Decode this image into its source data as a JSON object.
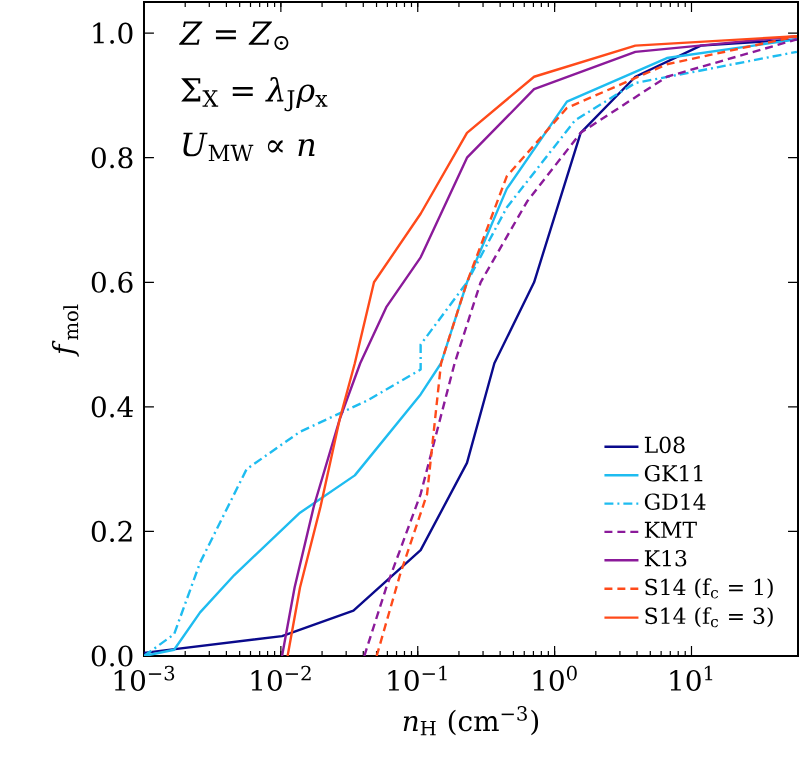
{
  "chart_data": {
    "type": "line",
    "xlabel": "*n*$_{H}$ (cm$^{−3}$)",
    "ylabel": "*f*$_{mol}$",
    "annotations": [
      "*Z* = *Z*$_{⊙}$",
      "Σ$_{X}$ = *λ*$_{J}$*ρ*$_{x}$",
      "*U*$_{MW}$ ∝ *n*"
    ],
    "log": "x",
    "xlim": [
      0.001,
      60
    ],
    "ylim": [
      0,
      1.05
    ],
    "xticks": [
      {
        "value": 0.001,
        "label": "10$^{−3}$"
      },
      {
        "value": 0.01,
        "label": "10$^{−2}$"
      },
      {
        "value": 0.1,
        "label": "10$^{−1}$"
      },
      {
        "value": 1,
        "label": "10$^{0}$"
      },
      {
        "value": 10,
        "label": "10$^{1}$"
      }
    ],
    "yticks": [
      {
        "value": 0,
        "label": "0.0"
      },
      {
        "value": 0.2,
        "label": "0.2"
      },
      {
        "value": 0.4,
        "label": "0.4"
      },
      {
        "value": 0.6,
        "label": "0.6"
      },
      {
        "value": 0.8,
        "label": "0.8"
      },
      {
        "value": 1,
        "label": "1.0"
      }
    ],
    "legend": "bottom right",
    "grid": false,
    "marker": "none",
    "series": [
      {
        "name": "L08",
        "color": "#0a0a8c",
        "line_style": "solid",
        "x": [
          0.001,
          0.0102,
          0.0339,
          0.105,
          0.229,
          0.363,
          0.708,
          1.55,
          3.89,
          11.7,
          58.9
        ],
        "values": [
          0.005,
          0.032,
          0.073,
          0.17,
          0.31,
          0.47,
          0.6,
          0.84,
          0.93,
          0.98,
          0.99
        ]
      },
      {
        "name": "GK11",
        "color": "#1ebcf0",
        "line_style": "solid",
        "x": [
          0.001,
          0.00166,
          0.00257,
          0.00457,
          0.0138,
          0.0347,
          0.105,
          0.148,
          0.229,
          0.447,
          1.23,
          6.61,
          58.9
        ],
        "values": [
          0,
          0.01,
          0.07,
          0.13,
          0.23,
          0.29,
          0.42,
          0.47,
          0.6,
          0.75,
          0.89,
          0.96,
          0.99
        ]
      },
      {
        "name": "GD14",
        "color": "#1ebcf0",
        "line_style": "dashdot",
        "x": [
          0.001,
          0.00166,
          0.00257,
          0.00562,
          0.0138,
          0.0427,
          0.105,
          0.105,
          0.229,
          0.447,
          1.41,
          3.89,
          11.7,
          58.9
        ],
        "values": [
          0,
          0.035,
          0.15,
          0.3,
          0.36,
          0.41,
          0.46,
          0.5,
          0.6,
          0.72,
          0.86,
          0.92,
          0.94,
          0.97
        ]
      },
      {
        "name": "KMT",
        "color": "#8b1a9a",
        "line_style": "dashed",
        "x": [
          0.0407,
          0.0589,
          0.105,
          0.186,
          0.288,
          0.631,
          1.55,
          6.61,
          58.9
        ],
        "values": [
          0,
          0.11,
          0.26,
          0.47,
          0.6,
          0.73,
          0.84,
          0.93,
          0.99
        ]
      },
      {
        "name": "K13",
        "color": "#8b1a9a",
        "line_style": "solid",
        "x": [
          0.0102,
          0.0126,
          0.0174,
          0.0269,
          0.038,
          0.0589,
          0.105,
          0.229,
          0.708,
          3.89,
          58.9
        ],
        "values": [
          0,
          0.11,
          0.24,
          0.38,
          0.47,
          0.56,
          0.64,
          0.8,
          0.91,
          0.97,
          0.995
        ]
      },
      {
        "name": "S14 (f$_{c}$ = 1)",
        "color": "#ff4a1a",
        "line_style": "dashed",
        "x": [
          0.0501,
          0.0741,
          0.117,
          0.148,
          0.229,
          0.447,
          1.23,
          6.61,
          58.9
        ],
        "values": [
          0,
          0.13,
          0.26,
          0.47,
          0.6,
          0.77,
          0.88,
          0.95,
          0.995
        ]
      },
      {
        "name": "S14 (f$_{c}$ = 3)",
        "color": "#ff4a1a",
        "line_style": "solid",
        "x": [
          0.0112,
          0.0138,
          0.0195,
          0.0269,
          0.0347,
          0.0479,
          0.105,
          0.229,
          0.708,
          3.89,
          58.9
        ],
        "values": [
          0,
          0.11,
          0.24,
          0.38,
          0.47,
          0.6,
          0.71,
          0.84,
          0.93,
          0.98,
          0.995
        ]
      }
    ]
  }
}
